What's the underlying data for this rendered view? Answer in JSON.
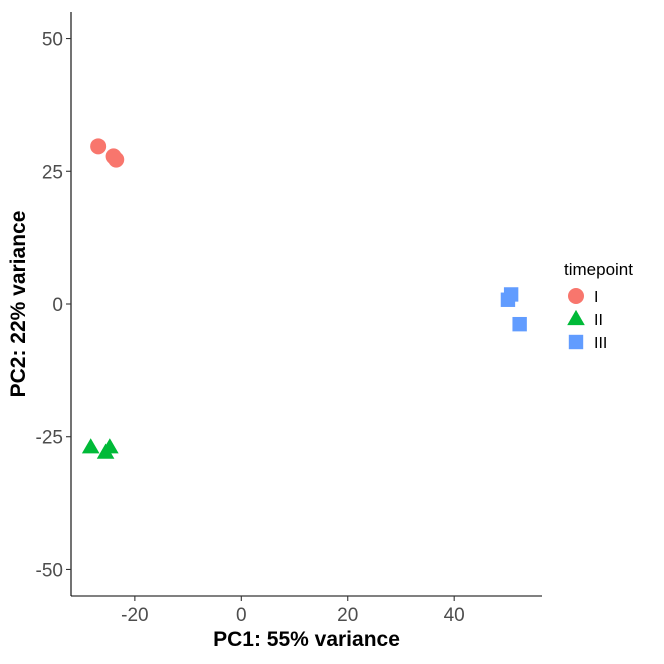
{
  "chart_data": {
    "type": "scatter",
    "xlabel": "PC1: 55% variance",
    "ylabel": "PC2: 22% variance",
    "xlim": [
      -32,
      56.5
    ],
    "ylim": [
      -55,
      55
    ],
    "x_ticks": [
      -20,
      0,
      20,
      40
    ],
    "y_ticks": [
      -50,
      -25,
      0,
      25,
      50
    ],
    "x_tick_labels": [
      "-20",
      "0",
      "20",
      "40"
    ],
    "y_tick_labels": [
      "-50",
      "-25",
      "0",
      "25",
      "50"
    ],
    "grid": false,
    "legend": {
      "title": "timepoint",
      "position": "right"
    },
    "series": [
      {
        "name": "I",
        "color": "#F8766D",
        "shape": "circle",
        "points": [
          {
            "x": -26.9,
            "y": 29.7
          },
          {
            "x": -24.0,
            "y": 27.8
          },
          {
            "x": -23.5,
            "y": 27.2
          }
        ]
      },
      {
        "name": "II",
        "color": "#00BA38",
        "shape": "triangle",
        "points": [
          {
            "x": -28.3,
            "y": -27.0
          },
          {
            "x": -25.5,
            "y": -28.0
          },
          {
            "x": -24.7,
            "y": -27.0
          }
        ]
      },
      {
        "name": "III",
        "color": "#619CFF",
        "shape": "square",
        "points": [
          {
            "x": 50.7,
            "y": 1.8
          },
          {
            "x": 50.1,
            "y": 0.8
          },
          {
            "x": 52.3,
            "y": -3.8
          }
        ]
      }
    ]
  }
}
